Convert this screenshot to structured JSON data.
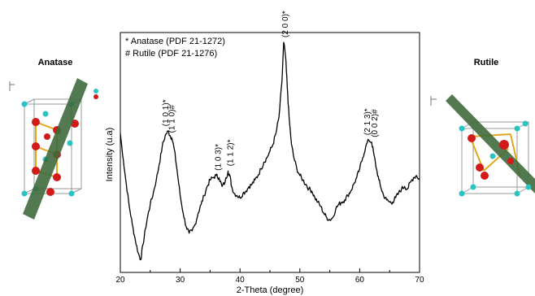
{
  "figure": {
    "left_title": "Anatase",
    "right_title": "Rutile"
  },
  "chart_data": {
    "type": "line",
    "title": "",
    "xlabel": "2-Theta (degree)",
    "ylabel": "Intensity (u.a)",
    "xlim": [
      20,
      70
    ],
    "ylim": [
      0,
      100
    ],
    "xticks": [
      20,
      30,
      40,
      50,
      60,
      70
    ],
    "y_tick_labels_shown": false,
    "grid": false,
    "legend": {
      "placement": "top-left",
      "entries": [
        "* Anatase (PDF 21-1272)",
        "# Rutile (PDF 21-1276)"
      ]
    },
    "series": [
      {
        "x": [
          20.0,
          20.5,
          21.0,
          21.5,
          22.0,
          22.5,
          23.0,
          23.4,
          23.8,
          24.2,
          24.6,
          25.0,
          25.5,
          26.0,
          26.5,
          27.0,
          27.5,
          28.0,
          28.3,
          28.6,
          29.0,
          29.5,
          30.0,
          30.5,
          31.0,
          31.5,
          32.0,
          32.5,
          33.0,
          33.5,
          34.0,
          34.5,
          35.0,
          35.5,
          36.0,
          36.5,
          37.0,
          37.5,
          38.0,
          38.3,
          38.6,
          39.0,
          39.5,
          40.0,
          40.5,
          41.0,
          41.5,
          42.0,
          42.5,
          43.0,
          43.5,
          44.0,
          44.5,
          45.0,
          45.5,
          46.0,
          46.5,
          47.0,
          47.3,
          47.6,
          47.9,
          48.2,
          48.6,
          49.0,
          49.5,
          50.0,
          50.5,
          51.0,
          51.5,
          52.0,
          52.5,
          53.0,
          53.5,
          54.0,
          54.5,
          55.0,
          55.5,
          56.0,
          56.5,
          57.0,
          57.5,
          58.0,
          58.5,
          59.0,
          59.5,
          60.0,
          60.5,
          61.0,
          61.5,
          62.0,
          62.4,
          62.8,
          63.2,
          63.6,
          64.0,
          64.5,
          65.0,
          65.5,
          66.0,
          66.5,
          67.0,
          67.5,
          68.0,
          68.5,
          69.0,
          69.5,
          70.0
        ],
        "y": [
          59,
          47,
          36,
          26,
          18,
          11,
          5,
          2,
          9,
          16,
          22,
          27,
          32,
          38,
          45,
          53,
          58,
          60,
          58,
          57,
          52,
          42,
          31,
          23,
          17,
          14,
          15,
          18,
          23,
          27,
          31,
          35,
          38,
          39,
          40,
          39,
          35,
          37,
          42,
          40,
          35,
          32,
          31,
          30,
          32,
          33,
          35,
          36,
          38,
          40,
          43,
          46,
          48,
          51,
          54,
          59,
          66,
          82,
          100,
          94,
          80,
          66,
          54,
          48,
          43,
          40,
          38,
          36,
          34,
          33,
          30,
          28,
          26,
          23,
          21,
          20,
          21,
          25,
          27,
          28,
          29,
          31,
          33,
          36,
          39,
          43,
          48,
          53,
          56,
          55,
          49,
          43,
          38,
          34,
          31,
          29,
          28,
          28,
          30,
          32,
          34,
          35,
          34,
          37,
          39,
          40,
          38
        ]
      }
    ],
    "annotations": [
      {
        "text": "(1 0 1)*",
        "x": 27.6,
        "y": 60
      },
      {
        "text": "(1 1 0)#",
        "x": 28.6,
        "y": 57
      },
      {
        "text": "(1 0 3)*",
        "x": 36.4,
        "y": 40
      },
      {
        "text": "(1 1 2)*",
        "x": 38.4,
        "y": 42
      },
      {
        "text": "(2 0 0)*",
        "x": 47.6,
        "y": 100
      },
      {
        "text": "(2 1 3)*",
        "x": 61.3,
        "y": 56
      },
      {
        "text": "(0 0 2)#",
        "x": 62.5,
        "y": 55
      }
    ]
  }
}
